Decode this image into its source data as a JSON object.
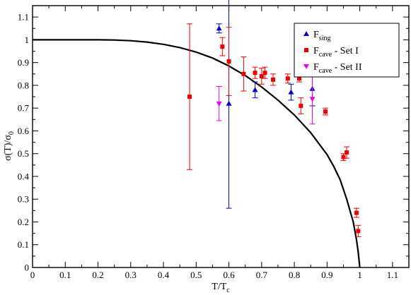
{
  "chart_data": {
    "type": "scatter",
    "x_label": "T/T_c",
    "y_label": "σ(T)/σ_0",
    "xlim": [
      0,
      1.15
    ],
    "ylim": [
      0,
      1.15
    ],
    "x_ticks": [
      "0",
      "0.1",
      "0.2",
      "0.3",
      "0.4",
      "0.5",
      "0.6",
      "0.7",
      "0.8",
      "0.9",
      "1",
      "1.1"
    ],
    "y_ticks": [
      "0",
      "0.1",
      "0.2",
      "0.3",
      "0.4",
      "0.5",
      "0.6",
      "0.7",
      "0.8",
      "0.9",
      "1",
      "1.1"
    ],
    "grid": false,
    "legend_position": "top-right",
    "curve": {
      "type": "line",
      "color": "#000000",
      "points": [
        [
          0,
          1
        ],
        [
          0.05,
          1
        ],
        [
          0.1,
          1
        ],
        [
          0.15,
          1
        ],
        [
          0.2,
          1
        ],
        [
          0.25,
          0.999
        ],
        [
          0.3,
          0.996
        ],
        [
          0.35,
          0.99
        ],
        [
          0.4,
          0.98
        ],
        [
          0.45,
          0.966
        ],
        [
          0.5,
          0.946
        ],
        [
          0.55,
          0.92
        ],
        [
          0.6,
          0.885
        ],
        [
          0.65,
          0.843
        ],
        [
          0.7,
          0.793
        ],
        [
          0.75,
          0.735
        ],
        [
          0.8,
          0.67
        ],
        [
          0.85,
          0.592
        ],
        [
          0.9,
          0.496
        ],
        [
          0.92,
          0.445
        ],
        [
          0.94,
          0.385
        ],
        [
          0.96,
          0.3
        ],
        [
          0.97,
          0.25
        ],
        [
          0.98,
          0.2
        ],
        [
          0.99,
          0.12
        ],
        [
          0.995,
          0.07
        ],
        [
          1.0,
          0
        ]
      ]
    },
    "series": [
      {
        "name": "F",
        "name_sub": "sing",
        "name_suffix": "",
        "marker": "triangle-up",
        "color": "#0000cc",
        "points": [
          {
            "x": 0.57,
            "y": 1.05,
            "yerr": 0.02
          },
          {
            "x": 0.6,
            "y": 0.72,
            "yerr": 0.46
          },
          {
            "x": 0.68,
            "y": 0.78,
            "yerr": 0.035
          },
          {
            "x": 0.79,
            "y": 0.77,
            "yerr": 0.035
          },
          {
            "x": 0.855,
            "y": 0.785,
            "yerr": 0.075
          }
        ]
      },
      {
        "name": "F",
        "name_sub": "cave",
        "name_suffix": " - Set I",
        "marker": "square",
        "color": "#ee0000",
        "points": [
          {
            "x": 0.48,
            "y": 0.75,
            "yerr": 0.32
          },
          {
            "x": 0.58,
            "y": 0.97,
            "yerr": 0.04
          },
          {
            "x": 0.6,
            "y": 0.905,
            "yerr": 0.15
          },
          {
            "x": 0.645,
            "y": 0.85,
            "yerr": 0.075
          },
          {
            "x": 0.68,
            "y": 0.855,
            "yerr": 0.025
          },
          {
            "x": 0.7,
            "y": 0.84,
            "yerr": 0.035
          },
          {
            "x": 0.71,
            "y": 0.855,
            "yerr": 0.025
          },
          {
            "x": 0.735,
            "y": 0.825,
            "yerr": 0.025
          },
          {
            "x": 0.78,
            "y": 0.83,
            "yerr": 0.02
          },
          {
            "x": 0.815,
            "y": 0.83,
            "yerr": 0.015
          },
          {
            "x": 0.82,
            "y": 0.71,
            "yerr": 0.035
          },
          {
            "x": 0.895,
            "y": 0.685,
            "yerr": 0.015
          },
          {
            "x": 0.95,
            "y": 0.485,
            "yerr": 0.015
          },
          {
            "x": 0.96,
            "y": 0.505,
            "yerr": 0.025
          },
          {
            "x": 0.99,
            "y": 0.24,
            "yerr": 0.02
          },
          {
            "x": 0.995,
            "y": 0.16,
            "yerr": 0.025
          }
        ]
      },
      {
        "name": "F",
        "name_sub": "cave",
        "name_suffix": " - Set II",
        "marker": "triangle-down",
        "color": "#ee00ee",
        "points": [
          {
            "x": 0.57,
            "y": 0.72,
            "yerr": 0.075
          },
          {
            "x": 0.855,
            "y": 0.74,
            "yerr": 0.11
          }
        ]
      }
    ]
  }
}
